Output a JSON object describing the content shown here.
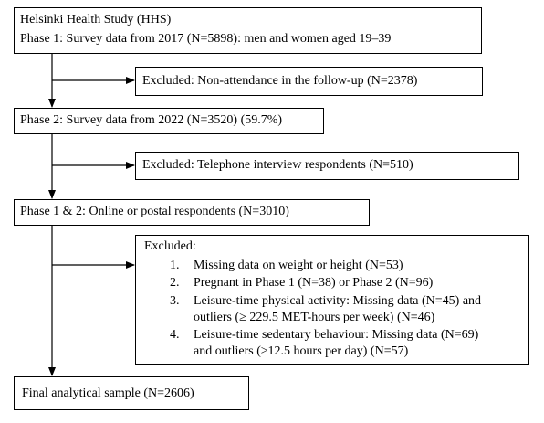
{
  "boxes": [
    {
      "lines": [
        "Helsinki Health Study (HHS)",
        "Phase 1: Survey data from 2017 (N=5898): men and women aged 19–39"
      ]
    },
    {
      "lines": [
        "Phase 2: Survey data from 2022 (N=3520) (59.7%)"
      ]
    },
    {
      "lines": [
        "Phase 1 & 2: Online or postal respondents (N=3010)"
      ]
    },
    {
      "lines": [
        "Final analytical sample (N=2606)"
      ]
    }
  ],
  "exclusions": [
    {
      "lines": [
        "Excluded: Non-attendance in the follow-up (N=2378)"
      ]
    },
    {
      "lines": [
        "Excluded: Telephone interview respondents (N=510)"
      ]
    },
    {
      "heading": "Excluded:",
      "items": [
        {
          "number": "1.",
          "lines": [
            "Missing data on weight or height (N=53)"
          ]
        },
        {
          "number": "2.",
          "lines": [
            "Pregnant in Phase 1 (N=38) or Phase 2 (N=96)"
          ]
        },
        {
          "number": "3.",
          "lines": [
            "Leisure-time physical activity: Missing data (N=45) and",
            "outliers (≥ 229.5 MET-hours per week) (N=46)"
          ]
        },
        {
          "number": "4.",
          "lines": [
            "Leisure-time sedentary behaviour: Missing data (N=69)",
            "and outliers (≥12.5 hours per day) (N=57)"
          ]
        }
      ]
    }
  ]
}
